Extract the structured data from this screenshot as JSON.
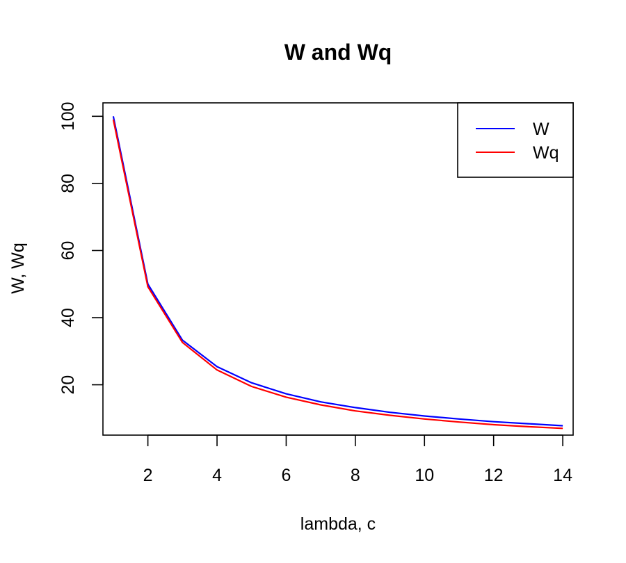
{
  "chart_data": {
    "type": "line",
    "title": "W and Wq",
    "xlabel": "lambda, c",
    "ylabel": "W, Wq",
    "xlim": [
      0.7,
      14.3
    ],
    "ylim": [
      5,
      104
    ],
    "x_ticks": [
      2,
      4,
      6,
      8,
      10,
      12,
      14
    ],
    "y_ticks": [
      20,
      40,
      60,
      80,
      100
    ],
    "grid": false,
    "legend_position": "top-right",
    "x": [
      1,
      2,
      3,
      4,
      5,
      6,
      7,
      8,
      9,
      10,
      11,
      12,
      13,
      14
    ],
    "series": [
      {
        "name": "W",
        "color": "#0000ff",
        "values": [
          100,
          50,
          33.3,
          25.4,
          20.6,
          17.3,
          14.9,
          13.2,
          11.8,
          10.7,
          9.8,
          9.0,
          8.4,
          7.8
        ]
      },
      {
        "name": "Wq",
        "color": "#ff0000",
        "values": [
          99,
          49.2,
          32.6,
          24.4,
          19.5,
          16.3,
          14.0,
          12.2,
          10.9,
          9.8,
          8.9,
          8.1,
          7.5,
          7.0
        ]
      }
    ]
  }
}
